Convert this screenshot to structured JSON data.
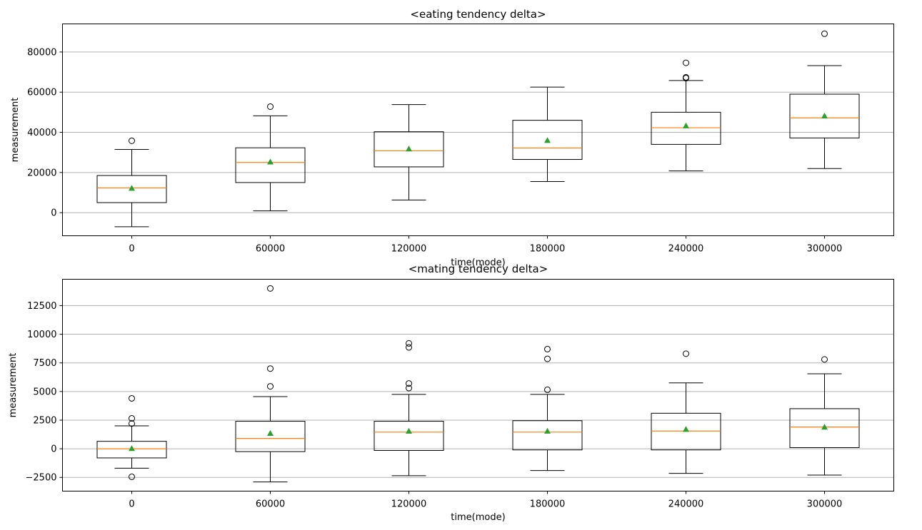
{
  "figure": {
    "panels": [
      {
        "title": "<eating tendency delta>",
        "xlabel": "time(mode)",
        "ylabel": "measurement"
      },
      {
        "title": "<mating tendency delta>",
        "xlabel": "time(mode)",
        "ylabel": "measurement"
      }
    ]
  },
  "chart_data": [
    {
      "type": "box",
      "title": "<eating tendency delta>",
      "xlabel": "time(mode)",
      "ylabel": "measurement",
      "categories": [
        "0",
        "60000",
        "120000",
        "180000",
        "240000",
        "300000"
      ],
      "ylim": [
        -11500,
        94000
      ],
      "yticks": [
        0,
        20000,
        40000,
        60000,
        80000
      ],
      "ytick_labels": [
        "0",
        "20000",
        "40000",
        "60000",
        "80000"
      ],
      "grid": "horizontal",
      "boxes": [
        {
          "whisker_low": -7000,
          "q1": 5000,
          "median": 12300,
          "mean": 12200,
          "q3": 18500,
          "whisker_high": 31500,
          "outliers": [
            35800
          ]
        },
        {
          "whisker_low": 900,
          "q1": 15000,
          "median": 25000,
          "mean": 25300,
          "q3": 32300,
          "whisker_high": 48200,
          "outliers": [
            52800
          ]
        },
        {
          "whisker_low": 6300,
          "q1": 22800,
          "median": 30800,
          "mean": 31800,
          "q3": 40300,
          "whisker_high": 53800,
          "outliers": []
        },
        {
          "whisker_low": 15500,
          "q1": 26500,
          "median": 32200,
          "mean": 36000,
          "q3": 46000,
          "whisker_high": 62500,
          "outliers": []
        },
        {
          "whisker_low": 20800,
          "q1": 34000,
          "median": 42300,
          "mean": 43300,
          "q3": 50000,
          "whisker_high": 65800,
          "outliers": [
            67000,
            67400,
            74600
          ]
        },
        {
          "whisker_low": 22000,
          "q1": 37200,
          "median": 47200,
          "mean": 48200,
          "q3": 59000,
          "whisker_high": 73200,
          "outliers": [
            89100
          ]
        }
      ],
      "colors": {
        "box": "#000000",
        "median": "#ff7f0e",
        "mean": "#2ca02c",
        "grid": "#b0b0b0"
      }
    },
    {
      "type": "box",
      "title": "<mating tendency delta>",
      "xlabel": "time(mode)",
      "ylabel": "measurement",
      "categories": [
        "0",
        "60000",
        "120000",
        "180000",
        "240000",
        "300000"
      ],
      "ylim": [
        -3700,
        14800
      ],
      "yticks": [
        -2500,
        0,
        2500,
        5000,
        7500,
        10000,
        12500
      ],
      "ytick_labels": [
        "−2500",
        "0",
        "2500",
        "5000",
        "7500",
        "10000",
        "12500"
      ],
      "grid": "horizontal",
      "boxes": [
        {
          "whisker_low": -1700,
          "q1": -800,
          "median": 0,
          "mean": 30,
          "q3": 650,
          "whisker_high": 2000,
          "outliers": [
            2200,
            2650,
            4400,
            -2450
          ]
        },
        {
          "whisker_low": -2900,
          "q1": -250,
          "median": 900,
          "mean": 1350,
          "q3": 2400,
          "whisker_high": 4550,
          "outliers": [
            5450,
            7000,
            14000
          ]
        },
        {
          "whisker_low": -2350,
          "q1": -150,
          "median": 1450,
          "mean": 1550,
          "q3": 2400,
          "whisker_high": 4750,
          "outliers": [
            5300,
            5700,
            8850,
            9200
          ]
        },
        {
          "whisker_low": -1900,
          "q1": -100,
          "median": 1450,
          "mean": 1550,
          "q3": 2450,
          "whisker_high": 4750,
          "outliers": [
            5150,
            7850,
            8700
          ]
        },
        {
          "whisker_low": -2150,
          "q1": -100,
          "median": 1550,
          "mean": 1700,
          "q3": 3100,
          "whisker_high": 5750,
          "outliers": [
            8300
          ]
        },
        {
          "whisker_low": -2300,
          "q1": 100,
          "median": 1900,
          "mean": 1900,
          "q3": 3500,
          "whisker_high": 6550,
          "outliers": [
            7800
          ]
        }
      ],
      "colors": {
        "box": "#000000",
        "median": "#ff7f0e",
        "mean": "#2ca02c",
        "grid": "#b0b0b0"
      }
    }
  ]
}
